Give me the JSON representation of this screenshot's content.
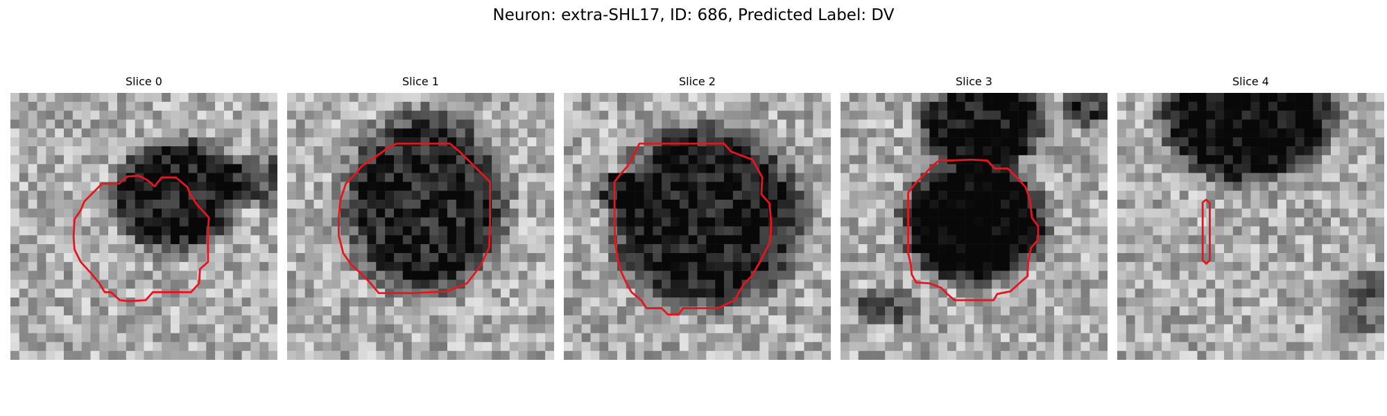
{
  "figure": {
    "title": "Neuron: extra-SHL17, ID: 686, Predicted Label: DV"
  },
  "contour_color": "#e8141e",
  "panels": [
    {
      "title": "Slice 0",
      "darkRegions": [
        {
          "cx": 18.5,
          "cy": 11.5,
          "rx": 6.5,
          "ry": 6.0,
          "strength": 0.58
        },
        {
          "cx": 28.5,
          "cy": 10.0,
          "rx": 5.5,
          "ry": 2.5,
          "strength": 0.38
        }
      ],
      "contour": [
        [
          17,
          9.5
        ],
        [
          18.6,
          9.5
        ],
        [
          19.9,
          10.6
        ],
        [
          20.2,
          11.4
        ],
        [
          21,
          12.6
        ],
        [
          22.3,
          14.0
        ],
        [
          22.2,
          15.5
        ],
        [
          22.2,
          16.9
        ],
        [
          22.2,
          19.0
        ],
        [
          21.3,
          19.8
        ],
        [
          21.2,
          21.4
        ],
        [
          20.3,
          22.4
        ],
        [
          18.5,
          22.4
        ],
        [
          16.0,
          22.4
        ],
        [
          15.2,
          23.3
        ],
        [
          13.3,
          23.4
        ],
        [
          12.3,
          23.3
        ],
        [
          11.3,
          22.4
        ],
        [
          10.6,
          22.4
        ],
        [
          10.0,
          21.4
        ],
        [
          9.0,
          20.2
        ],
        [
          7.9,
          19.0
        ],
        [
          7.2,
          17.6
        ],
        [
          7.1,
          16.2
        ],
        [
          7.2,
          14.2
        ],
        [
          7.9,
          13.2
        ],
        [
          8.3,
          12.2
        ],
        [
          9.3,
          11.2
        ],
        [
          10.3,
          10.2
        ],
        [
          12.2,
          10.2
        ],
        [
          13.1,
          9.4
        ],
        [
          14.4,
          9.3
        ],
        [
          15.4,
          9.8
        ],
        [
          16.2,
          10.5
        ]
      ]
    },
    {
      "title": "Slice 1",
      "darkRegions": [
        {
          "cx": 15.5,
          "cy": 12.5,
          "rx": 8.5,
          "ry": 9.5,
          "strength": 0.55
        }
      ],
      "contour": [
        [
          11.3,
          6.2
        ],
        [
          12.3,
          5.7
        ],
        [
          15.2,
          5.7
        ],
        [
          18.3,
          5.7
        ],
        [
          19.5,
          6.7
        ],
        [
          21.5,
          8.7
        ],
        [
          22.8,
          10.0
        ],
        [
          22.8,
          12.0
        ],
        [
          22.8,
          14.7
        ],
        [
          22.7,
          17.4
        ],
        [
          21.8,
          19.3
        ],
        [
          21.0,
          20.4
        ],
        [
          20.2,
          21.4
        ],
        [
          18.0,
          22.3
        ],
        [
          14.2,
          22.5
        ],
        [
          10.3,
          22.5
        ],
        [
          9.3,
          21.3
        ],
        [
          8.2,
          20.2
        ],
        [
          7.2,
          19.3
        ],
        [
          6.3,
          18.0
        ],
        [
          5.8,
          16.0
        ],
        [
          5.8,
          14.0
        ],
        [
          6.0,
          12.0
        ],
        [
          6.6,
          10.2
        ],
        [
          7.8,
          9.0
        ],
        [
          8.3,
          8.3
        ],
        [
          9.5,
          7.5
        ]
      ]
    },
    {
      "title": "Slice 2",
      "darkRegions": [
        {
          "cx": 16.0,
          "cy": 14.0,
          "rx": 10.0,
          "ry": 9.5,
          "strength": 0.6
        },
        {
          "cx": 6.0,
          "cy": 11.0,
          "rx": 2.5,
          "ry": 2.0,
          "strength": 0.3
        }
      ],
      "contour": [
        [
          7.2,
          8.2
        ],
        [
          8.5,
          5.7
        ],
        [
          12.0,
          5.7
        ],
        [
          15.0,
          5.7
        ],
        [
          18.0,
          5.7
        ],
        [
          18.8,
          6.6
        ],
        [
          21.2,
          7.5
        ],
        [
          22.3,
          9.5
        ],
        [
          22.2,
          11.4
        ],
        [
          23.1,
          12.4
        ],
        [
          23.3,
          14.5
        ],
        [
          23.2,
          16.7
        ],
        [
          22.2,
          18.7
        ],
        [
          21.1,
          20.6
        ],
        [
          20.2,
          21.5
        ],
        [
          19.2,
          23.3
        ],
        [
          17.3,
          24.2
        ],
        [
          13.4,
          24.2
        ],
        [
          12.9,
          24.9
        ],
        [
          11.7,
          24.9
        ],
        [
          11.0,
          24.2
        ],
        [
          9.3,
          24.2
        ],
        [
          8.7,
          23.3
        ],
        [
          7.6,
          22.4
        ],
        [
          7.0,
          21.3
        ],
        [
          6.4,
          20.0
        ],
        [
          6.1,
          18.8
        ],
        [
          5.8,
          17.0
        ],
        [
          5.7,
          15.0
        ],
        [
          5.7,
          12.4
        ],
        [
          5.7,
          10.0
        ],
        [
          6.3,
          9.2
        ]
      ]
    },
    {
      "title": "Slice 3",
      "darkRegions": [
        {
          "cx": 15.0,
          "cy": 14.5,
          "rx": 7.5,
          "ry": 6.5,
          "strength": 0.75
        },
        {
          "cx": 16.0,
          "cy": 3.5,
          "rx": 6.5,
          "ry": 4.5,
          "strength": 0.62
        },
        {
          "cx": 27.5,
          "cy": 1.5,
          "rx": 2.5,
          "ry": 2.0,
          "strength": 0.45
        },
        {
          "cx": 5.0,
          "cy": 24.0,
          "rx": 3.5,
          "ry": 2.0,
          "strength": 0.3
        }
      ],
      "contour": [
        [
          10.2,
          8.3
        ],
        [
          11.2,
          7.5
        ],
        [
          12.2,
          7.6
        ],
        [
          14.7,
          7.5
        ],
        [
          16.5,
          7.6
        ],
        [
          17.3,
          8.5
        ],
        [
          18.8,
          8.5
        ],
        [
          19.8,
          9.5
        ],
        [
          20.8,
          10.6
        ],
        [
          21.3,
          12.1
        ],
        [
          21.5,
          14.0
        ],
        [
          22.2,
          15.0
        ],
        [
          22.2,
          16.5
        ],
        [
          21.4,
          17.4
        ],
        [
          21.1,
          19.0
        ],
        [
          21.0,
          20.6
        ],
        [
          20.2,
          21.3
        ],
        [
          19.1,
          22.3
        ],
        [
          17.6,
          22.6
        ],
        [
          17.2,
          23.3
        ],
        [
          14.0,
          23.3
        ],
        [
          12.8,
          23.3
        ],
        [
          12.0,
          22.6
        ],
        [
          11.3,
          21.9
        ],
        [
          10.0,
          21.4
        ],
        [
          8.5,
          21.3
        ],
        [
          8.0,
          20.4
        ],
        [
          7.9,
          19.3
        ],
        [
          7.6,
          18.0
        ],
        [
          7.6,
          16.0
        ],
        [
          7.6,
          13.0
        ],
        [
          7.6,
          11.2
        ],
        [
          8.4,
          10.2
        ],
        [
          9.3,
          9.3
        ]
      ]
    },
    {
      "title": "Slice 4",
      "darkRegions": [
        {
          "cx": 14.5,
          "cy": 2.5,
          "rx": 9.0,
          "ry": 7.0,
          "strength": 0.68
        },
        {
          "cx": 27.5,
          "cy": 23.5,
          "rx": 3.0,
          "ry": 3.5,
          "strength": 0.3
        }
      ],
      "contour": [
        [
          9.6,
          12.3
        ],
        [
          10.0,
          12.0
        ],
        [
          10.4,
          12.4
        ],
        [
          10.4,
          15.0
        ],
        [
          10.4,
          17.5
        ],
        [
          10.4,
          18.8
        ],
        [
          10.0,
          19.2
        ],
        [
          9.6,
          18.8
        ],
        [
          9.6,
          15.0
        ]
      ]
    }
  ]
}
